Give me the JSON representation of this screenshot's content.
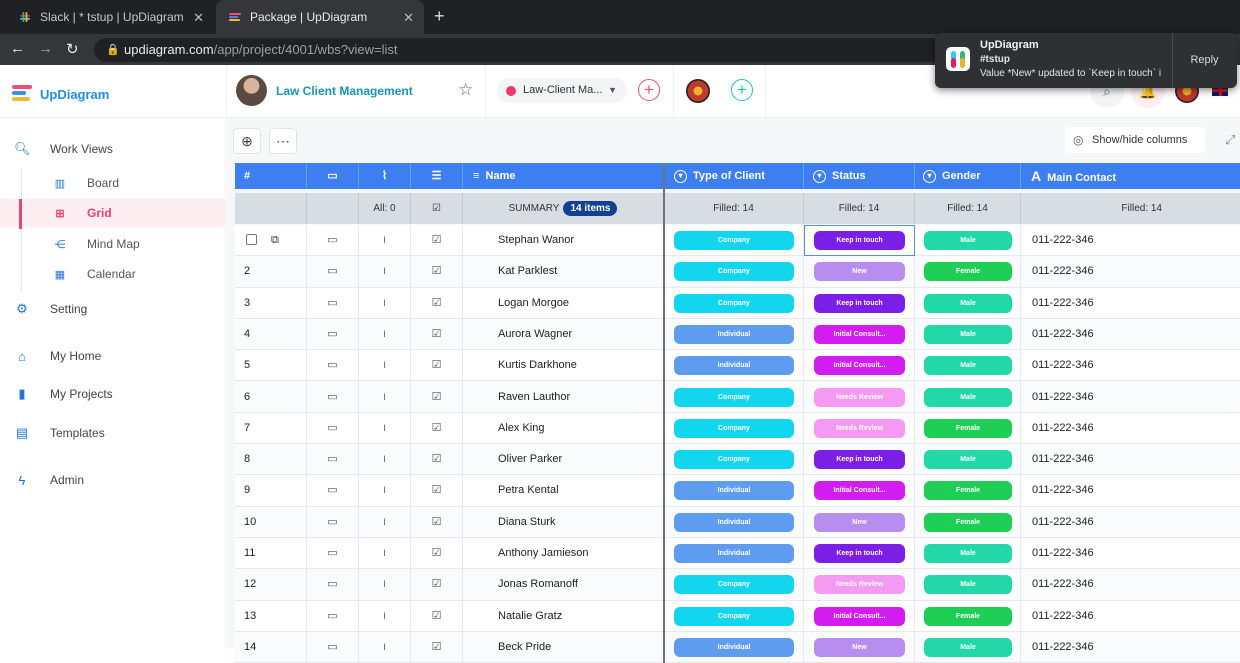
{
  "browser": {
    "tabs": [
      {
        "title": "Slack | * tstup | UpDiagram",
        "active": false
      },
      {
        "title": "Package | UpDiagram",
        "active": true
      }
    ],
    "url_host": "updiagram.com",
    "url_path": "/app/project/4001/wbs?view=list"
  },
  "notification": {
    "app": "UpDiagram",
    "channel": "#tstup",
    "message": "Value *New* updated to `Keep in touch` i",
    "action": "Reply"
  },
  "header": {
    "brand": "UpDiagram",
    "project_title": "Law Client Management",
    "workspace": "Law-Client Ma..."
  },
  "sidebar": {
    "work_views": "Work Views",
    "views": [
      {
        "label": "Board",
        "icon": "board-icon"
      },
      {
        "label": "Grid",
        "icon": "grid-icon",
        "active": true
      },
      {
        "label": "Mind Map",
        "icon": "mind-map-icon"
      },
      {
        "label": "Calendar",
        "icon": "calendar-icon"
      }
    ],
    "items": [
      {
        "label": "Setting",
        "icon": "gear-icon"
      },
      {
        "label": "My Home",
        "icon": "home-icon"
      },
      {
        "label": "My Projects",
        "icon": "book-icon"
      },
      {
        "label": "Templates",
        "icon": "clipboard-icon"
      },
      {
        "label": "Admin",
        "icon": "bolt-icon"
      }
    ]
  },
  "toolbar": {
    "show_hide": "Show/hide columns"
  },
  "grid": {
    "headers": {
      "num": "#",
      "name": "Name",
      "type": "Type of Client",
      "status": "Status",
      "gender": "Gender",
      "contact": "Main Contact"
    },
    "summary": {
      "all": "All: 0",
      "label": "SUMMARY",
      "items": "14 items",
      "type": "Filled: 14",
      "status": "Filled: 14",
      "gender": "Filled: 14",
      "contact": "Filled: 14"
    },
    "colors": {
      "Company": "#12d6ee",
      "Individual": "#5e9cf0",
      "Keep in touch": "#7b1ee6",
      "New": "#b78df0",
      "Initial Consult...": "#d21cf0",
      "Needs Review": "#f59af2",
      "Male": "#22d8a8",
      "Female": "#1fcf55"
    },
    "rows": [
      {
        "num": "",
        "name": "Stephan Wanor",
        "type": "Company",
        "status": "Keep in touch",
        "gender": "Male",
        "contact": "011-222-346"
      },
      {
        "num": "2",
        "name": "Kat Parklest",
        "type": "Company",
        "status": "New",
        "gender": "Female",
        "contact": "011-222-346"
      },
      {
        "num": "3",
        "name": "Logan Morgoe",
        "type": "Company",
        "status": "Keep in touch",
        "gender": "Male",
        "contact": "011-222-346"
      },
      {
        "num": "4",
        "name": "Aurora Wagner",
        "type": "Individual",
        "status": "Initial Consult...",
        "gender": "Male",
        "contact": "011-222-346"
      },
      {
        "num": "5",
        "name": "Kurtis Darkhone",
        "type": "Individual",
        "status": "Initial Consult...",
        "gender": "Male",
        "contact": "011-222-346"
      },
      {
        "num": "6",
        "name": "Raven Lauthor",
        "type": "Company",
        "status": "Needs Review",
        "gender": "Male",
        "contact": "011-222-346"
      },
      {
        "num": "7",
        "name": "Alex King",
        "type": "Company",
        "status": "Needs Review",
        "gender": "Female",
        "contact": "011-222-346"
      },
      {
        "num": "8",
        "name": "Oliver Parker",
        "type": "Company",
        "status": "Keep in touch",
        "gender": "Male",
        "contact": "011-222-346"
      },
      {
        "num": "9",
        "name": "Petra Kental",
        "type": "Individual",
        "status": "Initial Consult...",
        "gender": "Female",
        "contact": "011-222-346"
      },
      {
        "num": "10",
        "name": "Diana Sturk",
        "type": "Individual",
        "status": "New",
        "gender": "Female",
        "contact": "011-222-346"
      },
      {
        "num": "11",
        "name": "Anthony Jamieson",
        "type": "Individual",
        "status": "Keep in touch",
        "gender": "Male",
        "contact": "011-222-346"
      },
      {
        "num": "12",
        "name": "Jonas Romanoff",
        "type": "Company",
        "status": "Needs Review",
        "gender": "Male",
        "contact": "011-222-346"
      },
      {
        "num": "13",
        "name": "Natalie Gratz",
        "type": "Company",
        "status": "Initial Consult...",
        "gender": "Female",
        "contact": "011-222-346"
      },
      {
        "num": "14",
        "name": "Beck Pride",
        "type": "Individual",
        "status": "New",
        "gender": "Male",
        "contact": "011-222-346"
      }
    ]
  }
}
